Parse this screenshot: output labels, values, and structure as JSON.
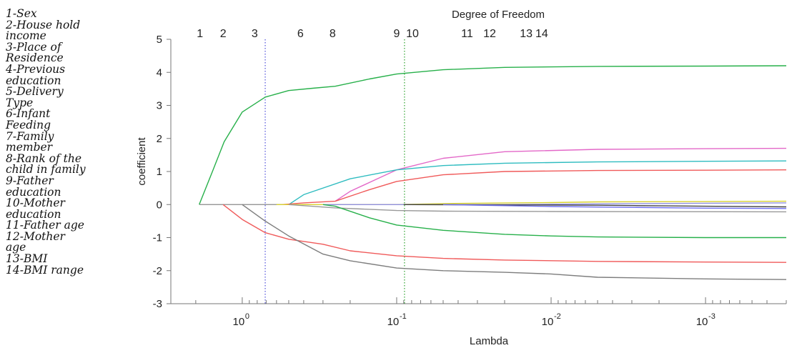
{
  "legend": [
    "1-Sex",
    "2-House hold",
    "income",
    "3-Place of",
    "Residence",
    "4-Previous",
    "education",
    "5-Delivery",
    "Type",
    "6-Infant",
    "Feeding",
    "7-Family",
    "member",
    "8-Rank of the",
    "child in family",
    "9-Father",
    "education",
    "10-Mother",
    "education",
    "11-Father age",
    "12-Mother",
    "age",
    "13-BMI",
    "14-BMI range"
  ],
  "chart_data": {
    "type": "line",
    "title": "",
    "top_axis_title": "Degree of Freedom",
    "xlabel": "Lambda",
    "ylabel": "coefficient",
    "x_scale": "log-reversed",
    "x_unit": "lambda",
    "xlim": [
      2.9,
      0.0003
    ],
    "ylim": [
      -3,
      5
    ],
    "y_ticks": [
      5,
      4,
      3,
      2,
      1,
      0,
      -1,
      -2,
      -3
    ],
    "x_ticks": [
      {
        "value": 1,
        "label": "10",
        "exp": "0"
      },
      {
        "value": 0.1,
        "label": "10",
        "exp": "-1"
      },
      {
        "value": 0.01,
        "label": "10",
        "exp": "-2"
      },
      {
        "value": 0.001,
        "label": "10",
        "exp": "-3"
      }
    ],
    "top_ticks": [
      {
        "lambda": 1.88,
        "label": "1"
      },
      {
        "lambda": 1.33,
        "label": "2"
      },
      {
        "lambda": 0.83,
        "label": "3"
      },
      {
        "lambda": 0.42,
        "label": "6"
      },
      {
        "lambda": 0.26,
        "label": "8"
      },
      {
        "lambda": 0.1,
        "label": "9"
      },
      {
        "lambda": 0.079,
        "label": "10"
      },
      {
        "lambda": 0.035,
        "label": "11"
      },
      {
        "lambda": 0.025,
        "label": "12"
      },
      {
        "lambda": 0.0145,
        "label": "13"
      },
      {
        "lambda": 0.0115,
        "label": "14"
      }
    ],
    "vlines": [
      {
        "lambda": 0.71,
        "color": "#5a5adc"
      },
      {
        "lambda": 0.089,
        "color": "#3caa3c"
      }
    ],
    "series": [
      {
        "color": "#27b04a",
        "points": [
          [
            1.9,
            0
          ],
          [
            1.56,
            1
          ],
          [
            1.31,
            1.9
          ],
          [
            1.0,
            2.8
          ],
          [
            0.71,
            3.25
          ],
          [
            0.5,
            3.45
          ],
          [
            0.35,
            3.52
          ],
          [
            0.25,
            3.58
          ],
          [
            0.15,
            3.8
          ],
          [
            0.1,
            3.95
          ],
          [
            0.05,
            4.08
          ],
          [
            0.02,
            4.15
          ],
          [
            0.005,
            4.18
          ],
          [
            0.001,
            4.19
          ],
          [
            0.0003,
            4.2
          ]
        ]
      },
      {
        "color": "#e368c8",
        "points": [
          [
            0.25,
            0.1
          ],
          [
            0.2,
            0.4
          ],
          [
            0.1,
            1.05
          ],
          [
            0.05,
            1.4
          ],
          [
            0.02,
            1.6
          ],
          [
            0.005,
            1.67
          ],
          [
            0.001,
            1.69
          ],
          [
            0.0003,
            1.7
          ]
        ]
      },
      {
        "color": "#2fbcc0",
        "points": [
          [
            0.5,
            0
          ],
          [
            0.4,
            0.3
          ],
          [
            0.2,
            0.78
          ],
          [
            0.1,
            1.05
          ],
          [
            0.05,
            1.18
          ],
          [
            0.02,
            1.25
          ],
          [
            0.005,
            1.29
          ],
          [
            0.001,
            1.31
          ],
          [
            0.0003,
            1.32
          ]
        ]
      },
      {
        "color": "#f05a5a",
        "points": [
          [
            0.55,
            0
          ],
          [
            0.4,
            0.05
          ],
          [
            0.25,
            0.1
          ],
          [
            0.15,
            0.45
          ],
          [
            0.1,
            0.7
          ],
          [
            0.05,
            0.9
          ],
          [
            0.02,
            1.0
          ],
          [
            0.005,
            1.03
          ],
          [
            0.001,
            1.04
          ],
          [
            0.0003,
            1.05
          ]
        ]
      },
      {
        "color": "#d8d230",
        "points": [
          [
            0.6,
            0
          ],
          [
            0.1,
            0
          ],
          [
            0.05,
            0.03
          ],
          [
            0.01,
            0.06
          ],
          [
            0.005,
            0.08
          ],
          [
            0.001,
            0.09
          ],
          [
            0.0003,
            0.1
          ]
        ]
      },
      {
        "color": "#9090e0",
        "points": [
          [
            0.3,
            0
          ],
          [
            0.02,
            0
          ],
          [
            0.005,
            0.02
          ],
          [
            0.001,
            0.04
          ],
          [
            0.0003,
            0.05
          ]
        ]
      },
      {
        "color": "#444444",
        "points": [
          [
            0.09,
            0
          ],
          [
            0.005,
            -0.02
          ],
          [
            0.001,
            -0.05
          ],
          [
            0.0003,
            -0.07
          ]
        ]
      },
      {
        "color": "#7070f0",
        "points": [
          [
            0.05,
            0
          ],
          [
            0.01,
            -0.06
          ],
          [
            0.001,
            -0.11
          ],
          [
            0.0003,
            -0.12
          ]
        ]
      },
      {
        "color": "#999999",
        "points": [
          [
            0.5,
            0
          ],
          [
            0.25,
            -0.1
          ],
          [
            0.1,
            -0.18
          ],
          [
            0.05,
            -0.2
          ],
          [
            0.01,
            -0.21
          ],
          [
            0.0003,
            -0.22
          ]
        ]
      },
      {
        "color": "#27b04a",
        "points": [
          [
            0.3,
            0
          ],
          [
            0.25,
            -0.05
          ],
          [
            0.15,
            -0.4
          ],
          [
            0.1,
            -0.62
          ],
          [
            0.05,
            -0.78
          ],
          [
            0.02,
            -0.9
          ],
          [
            0.01,
            -0.95
          ],
          [
            0.005,
            -0.98
          ],
          [
            0.001,
            -1.0
          ],
          [
            0.0003,
            -1.0
          ]
        ]
      },
      {
        "color": "#f05a5a",
        "points": [
          [
            1.33,
            0
          ],
          [
            1.0,
            -0.45
          ],
          [
            0.71,
            -0.85
          ],
          [
            0.5,
            -1.05
          ],
          [
            0.3,
            -1.2
          ],
          [
            0.2,
            -1.4
          ],
          [
            0.1,
            -1.55
          ],
          [
            0.05,
            -1.63
          ],
          [
            0.02,
            -1.68
          ],
          [
            0.005,
            -1.72
          ],
          [
            0.001,
            -1.74
          ],
          [
            0.0003,
            -1.75
          ]
        ]
      },
      {
        "color": "#7d7d7d",
        "points": [
          [
            1.0,
            0
          ],
          [
            0.71,
            -0.5
          ],
          [
            0.5,
            -0.95
          ],
          [
            0.3,
            -1.5
          ],
          [
            0.2,
            -1.7
          ],
          [
            0.1,
            -1.92
          ],
          [
            0.05,
            -2.0
          ],
          [
            0.02,
            -2.05
          ],
          [
            0.01,
            -2.1
          ],
          [
            0.005,
            -2.2
          ],
          [
            0.001,
            -2.25
          ],
          [
            0.0003,
            -2.27
          ]
        ]
      }
    ]
  }
}
